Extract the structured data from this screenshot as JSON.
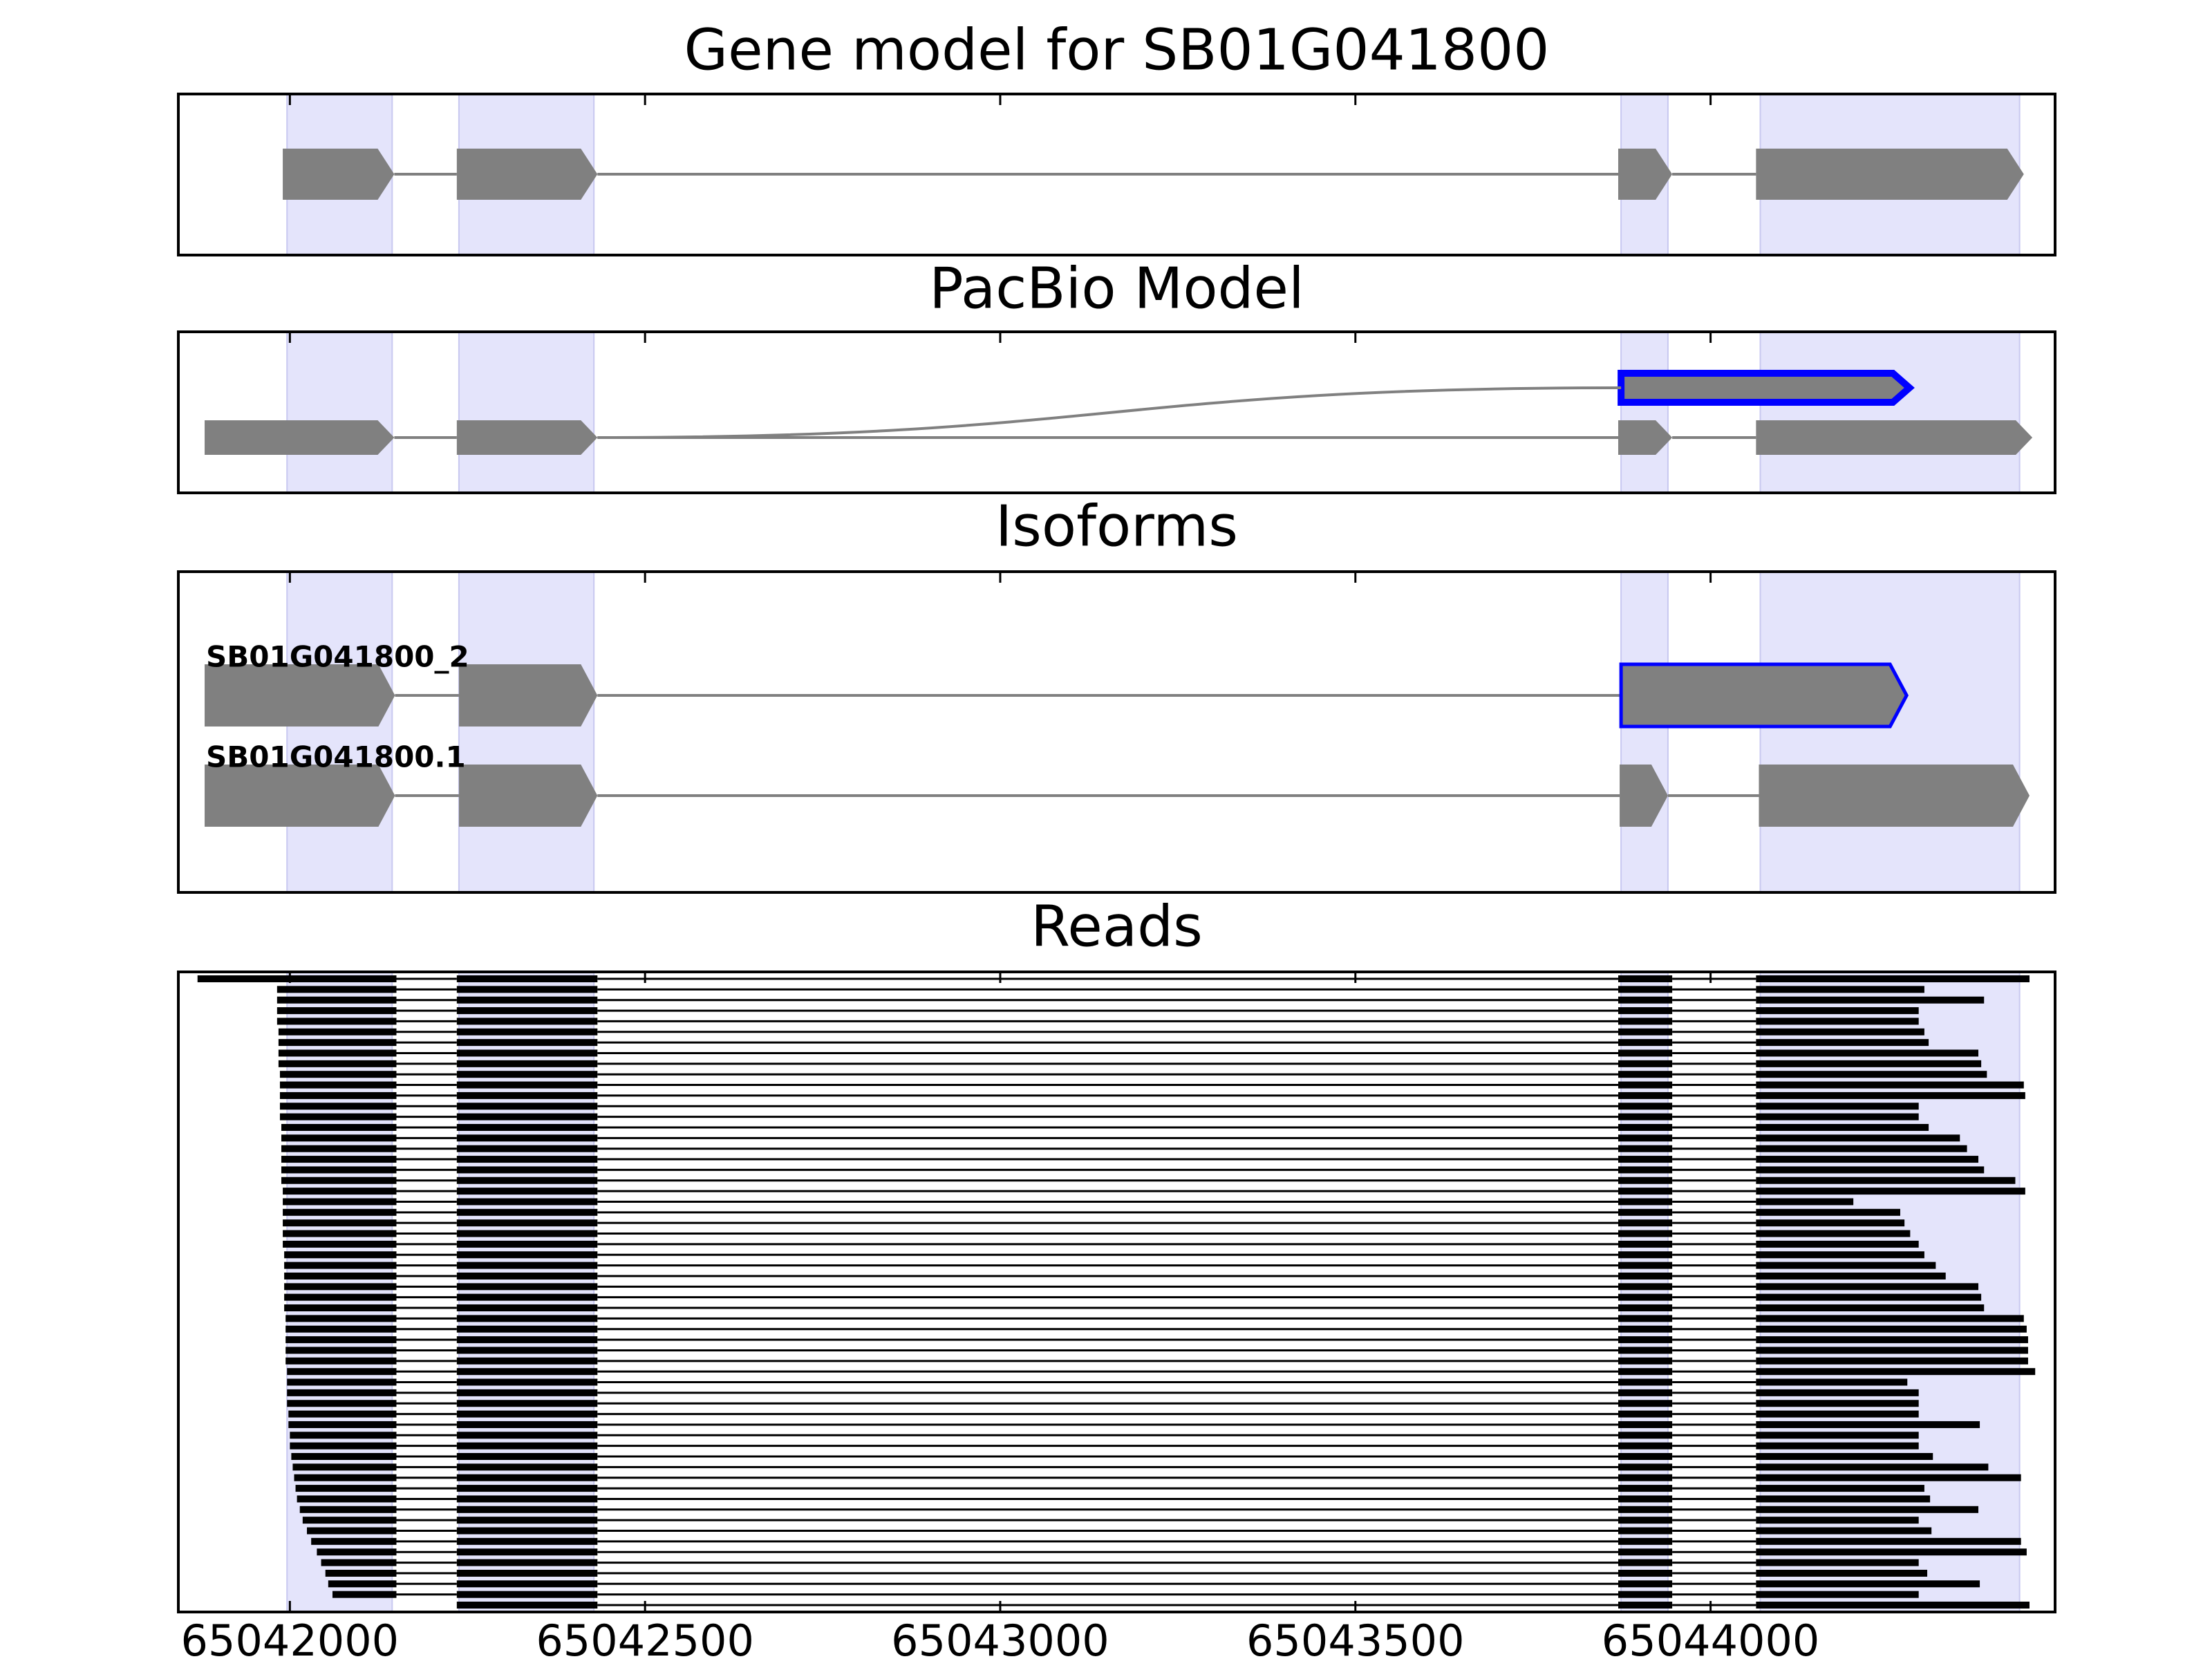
{
  "chart_data": {
    "type": "gene-tracks",
    "xlim": [
      65041843,
      65044485
    ],
    "xticks": [
      65042000,
      65042500,
      65043000,
      65043500,
      65044000
    ],
    "shading": [
      [
        65041996,
        65042144
      ],
      [
        65042238,
        65042428
      ],
      [
        65043874,
        65043940
      ],
      [
        65044070,
        65044435
      ]
    ],
    "shading_color": "#e4e4fb",
    "exon_color": "#808080",
    "panels": [
      {
        "title": "Gene model for SB01G041800",
        "transcripts": [
          {
            "exons": [
              [
                65041990,
                65042147
              ],
              [
                65042235,
                65042433
              ],
              [
                65043870,
                65043946
              ],
              [
                65044064,
                65044441
              ]
            ]
          }
        ]
      },
      {
        "title": "PacBio Model",
        "transcripts": [
          {
            "exons": [
              [
                65041880,
                65042147
              ],
              [
                65042235,
                65042433
              ],
              [
                65043870,
                65043946
              ],
              [
                65044064,
                65044453
              ]
            ]
          },
          {
            "exons": [
              [
                65043874,
                65044280
              ]
            ],
            "highlight": 0,
            "edge_color": "#0000ff"
          }
        ],
        "links": [
          {
            "x": [
              65042433,
              65043874
            ],
            "rows": [
              0,
              1
            ]
          }
        ]
      },
      {
        "title": "Isoforms",
        "transcripts": [
          {
            "name": "SB01G041800_2",
            "exons": [
              [
                65041880,
                65042148
              ],
              [
                65042238,
                65042433
              ],
              [
                65043874,
                65044276
              ]
            ],
            "highlight": 2,
            "edge_color": "#0000ff"
          },
          {
            "name": "SB01G041800.1",
            "exons": [
              [
                65041880,
                65042148
              ],
              [
                65042238,
                65042433
              ],
              [
                65043872,
                65043940
              ],
              [
                65044068,
                65044449
              ]
            ]
          }
        ]
      },
      {
        "title": "Reads",
        "reads": {
          "color": "#000000",
          "junctions": [
            [
              65042150,
              65042235
            ],
            [
              65042433,
              65043870
            ],
            [
              65043946,
              65044064
            ]
          ],
          "starts": [
            65041870,
            65041982,
            65041982,
            65041982,
            65041982,
            65041984,
            65041984,
            65041984,
            65041984,
            65041986,
            65041986,
            65041986,
            65041986,
            65041986,
            65041988,
            65041988,
            65041988,
            65041988,
            65041988,
            65041988,
            65041990,
            65041990,
            65041990,
            65041990,
            65041990,
            65041990,
            65041992,
            65041992,
            65041992,
            65041992,
            65041992,
            65041992,
            65041994,
            65041994,
            65041994,
            65041994,
            65041994,
            65041996,
            65041996,
            65041996,
            65041996,
            65041998,
            65041998,
            65042000,
            65042000,
            65042002,
            65042004,
            65042006,
            65042008,
            65042010,
            65042014,
            65042018,
            65042024,
            65042030,
            65042038,
            65042044,
            65042050,
            65042054,
            65042060,
            65042235
          ],
          "ends": [
            65044449,
            65044301,
            65044385,
            65044293,
            65044293,
            65044301,
            65044307,
            65044377,
            65044381,
            65044389,
            65044441,
            65044443,
            65044293,
            65044293,
            65044307,
            65044351,
            65044361,
            65044377,
            65044385,
            65044429,
            65044443,
            65044201,
            65044267,
            65044273,
            65044281,
            65044293,
            65044301,
            65044317,
            65044331,
            65044377,
            65044381,
            65044385,
            65044441,
            65044445,
            65044447,
            65044447,
            65044447,
            65044457,
            65044277,
            65044293,
            65044293,
            65044293,
            65044379,
            65044293,
            65044293,
            65044313,
            65044391,
            65044437,
            65044301,
            65044309,
            65044377,
            65044293,
            65044311,
            65044437,
            65044445,
            65044293,
            65044305,
            65044379,
            65044293,
            65044449
          ]
        }
      }
    ]
  }
}
